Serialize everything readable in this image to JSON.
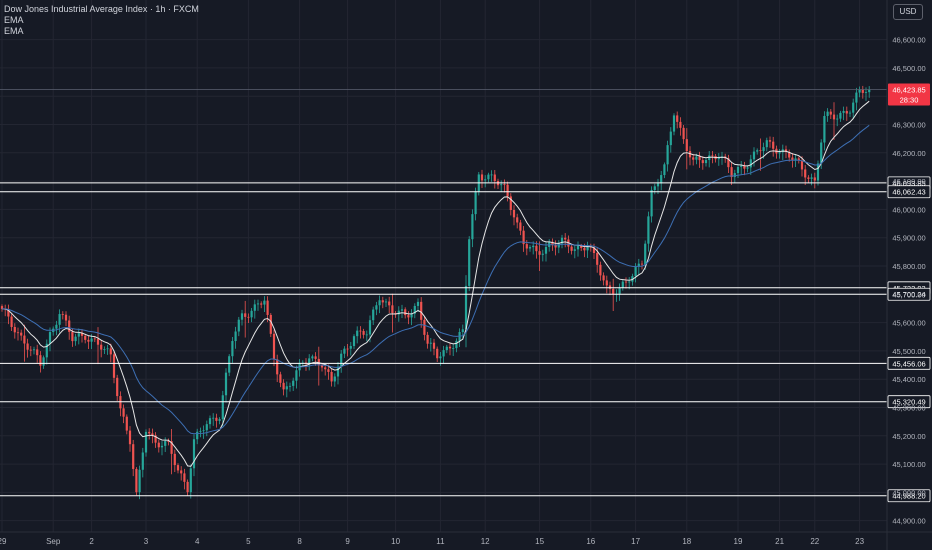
{
  "header": {
    "title": "Dow Jones Industrial Average Index · 1h · FXCM",
    "indicators": [
      "EMA",
      "EMA"
    ],
    "currency_button": "USD"
  },
  "colors": {
    "background": "#161a25",
    "grid": "#232632",
    "up": "#26a69a",
    "down": "#ef5350",
    "ema_fast": "#e6e6e6",
    "ema_slow": "#3d6fb4",
    "level_line": "#ffffff",
    "price_badge": "#f23645",
    "axis_text": "#b2b5be"
  },
  "chart_data": {
    "type": "candlestick",
    "title": "Dow Jones Industrial Average Index · 1h · FXCM",
    "ylim": [
      44860,
      46740
    ],
    "y_ticks": [
      46600,
      46500,
      46400,
      46300,
      46200,
      46100,
      46000,
      45900,
      45800,
      45700,
      45600,
      45500,
      45400,
      45300,
      45200,
      45100,
      45000,
      44900
    ],
    "y_tick_labels": [
      "46,600.00",
      "46,500.00",
      "46,400.00",
      "46,300.00",
      "46,200.00",
      "46,100.00",
      "46,000.00",
      "45,900.00",
      "45,800.00",
      "45,700.00",
      "45,600.00",
      "45,500.00",
      "45,400.00",
      "45,300.00",
      "45,200.00",
      "45,100.00",
      "45,000.00",
      "44,900.00"
    ],
    "x_ticks": [
      "29",
      "Sep",
      "2",
      "3",
      "4",
      "5",
      "8",
      "9",
      "10",
      "11",
      "12",
      "15",
      "16",
      "17",
      "18",
      "19",
      "21",
      "22",
      "23"
    ],
    "x_tick_bars": [
      0,
      16,
      28,
      45,
      61,
      77,
      93,
      108,
      123,
      137,
      151,
      168,
      184,
      198,
      214,
      230,
      243,
      254,
      268
    ],
    "total_bars": 272,
    "horizontal_levels": [
      46093.85,
      46062.43,
      45722.93,
      45700.24,
      45456.06,
      45320.49,
      44988.2
    ],
    "horizontal_level_labels": [
      "46,093.85",
      "46,062.43",
      "45,722.93",
      "45,700.24",
      "45,456.06",
      "45,320.49",
      "44,988.20"
    ],
    "current_price": 46423.85,
    "current_price_label": "46,423.85",
    "countdown": "28:30",
    "anchors": [
      [
        0,
        45640
      ],
      [
        4,
        45580
      ],
      [
        8,
        45520
      ],
      [
        12,
        45450
      ],
      [
        15,
        45560
      ],
      [
        18,
        45640
      ],
      [
        22,
        45540
      ],
      [
        26,
        45560
      ],
      [
        30,
        45520
      ],
      [
        34,
        45480
      ],
      [
        37,
        45300
      ],
      [
        40,
        45180
      ],
      [
        42,
        44980
      ],
      [
        45,
        45230
      ],
      [
        48,
        45180
      ],
      [
        52,
        45160
      ],
      [
        55,
        45080
      ],
      [
        58,
        45020
      ],
      [
        60,
        45180
      ],
      [
        64,
        45240
      ],
      [
        68,
        45280
      ],
      [
        72,
        45540
      ],
      [
        75,
        45620
      ],
      [
        78,
        45650
      ],
      [
        82,
        45680
      ],
      [
        85,
        45470
      ],
      [
        88,
        45360
      ],
      [
        92,
        45420
      ],
      [
        96,
        45480
      ],
      [
        100,
        45460
      ],
      [
        103,
        45380
      ],
      [
        106,
        45480
      ],
      [
        110,
        45560
      ],
      [
        114,
        45560
      ],
      [
        118,
        45700
      ],
      [
        122,
        45640
      ],
      [
        126,
        45620
      ],
      [
        130,
        45670
      ],
      [
        133,
        45520
      ],
      [
        136,
        45480
      ],
      [
        140,
        45520
      ],
      [
        144,
        45560
      ],
      [
        146,
        45900
      ],
      [
        149,
        46130
      ],
      [
        153,
        46110
      ],
      [
        157,
        46070
      ],
      [
        160,
        45990
      ],
      [
        163,
        45880
      ],
      [
        167,
        45840
      ],
      [
        171,
        45880
      ],
      [
        175,
        45880
      ],
      [
        179,
        45860
      ],
      [
        183,
        45880
      ],
      [
        186,
        45800
      ],
      [
        189,
        45720
      ],
      [
        193,
        45720
      ],
      [
        197,
        45760
      ],
      [
        200,
        45820
      ],
      [
        203,
        46060
      ],
      [
        207,
        46140
      ],
      [
        210,
        46350
      ],
      [
        213,
        46250
      ],
      [
        216,
        46160
      ],
      [
        220,
        46180
      ],
      [
        224,
        46200
      ],
      [
        228,
        46120
      ],
      [
        232,
        46160
      ],
      [
        236,
        46200
      ],
      [
        239,
        46230
      ],
      [
        242,
        46220
      ],
      [
        246,
        46190
      ],
      [
        250,
        46140
      ],
      [
        254,
        46100
      ],
      [
        257,
        46320
      ],
      [
        261,
        46330
      ],
      [
        265,
        46360
      ],
      [
        268,
        46410
      ],
      [
        271,
        46424
      ]
    ]
  }
}
